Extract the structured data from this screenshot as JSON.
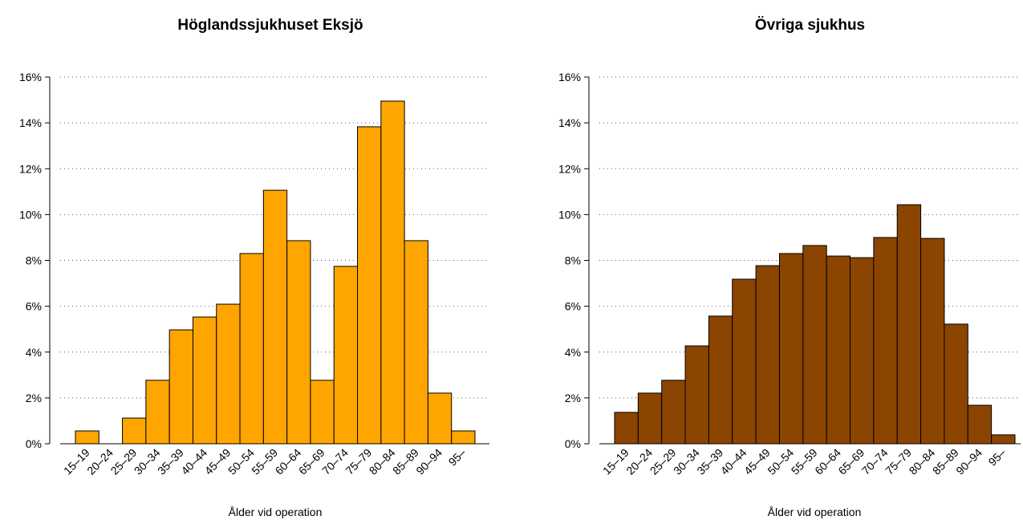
{
  "chart_data": [
    {
      "type": "bar",
      "title": "Höglandssjukhuset Eksjö",
      "x_label": "Ålder vid operation",
      "color": "#ffa500",
      "categories": [
        "15–19",
        "20–24",
        "25–29",
        "30–34",
        "35–39",
        "40–44",
        "45–49",
        "50–54",
        "55–59",
        "60–64",
        "65–69",
        "70–74",
        "75–79",
        "80–84",
        "85–89",
        "90–94",
        "95–"
      ],
      "values": [
        0.56,
        0,
        1.12,
        2.77,
        4.97,
        5.53,
        6.09,
        8.3,
        11.06,
        8.86,
        2.77,
        7.74,
        13.83,
        14.95,
        8.86,
        2.21,
        0.56
      ],
      "ylim": [
        0,
        16
      ],
      "yticks": [
        {
          "value": 0,
          "label": "0%"
        },
        {
          "value": 2,
          "label": "2%"
        },
        {
          "value": 4,
          "label": "4%"
        },
        {
          "value": 6,
          "label": "6%"
        },
        {
          "value": 8,
          "label": "8%"
        },
        {
          "value": 10,
          "label": "10%"
        },
        {
          "value": 12,
          "label": "12%"
        },
        {
          "value": 14,
          "label": "14%"
        },
        {
          "value": 16,
          "label": "16%"
        }
      ],
      "grid": true
    },
    {
      "type": "bar",
      "title": "Övriga sjukhus",
      "x_label": "Ålder vid operation",
      "color": "#8b4500",
      "categories": [
        "15–19",
        "20–24",
        "25–29",
        "30–34",
        "35–39",
        "40–44",
        "45–49",
        "50–54",
        "55–59",
        "60–64",
        "65–69",
        "70–74",
        "75–79",
        "80–84",
        "85–89",
        "90–94",
        "95–"
      ],
      "values": [
        1.37,
        2.21,
        2.77,
        4.27,
        5.57,
        7.18,
        7.77,
        8.3,
        8.65,
        8.19,
        8.12,
        9.0,
        10.43,
        8.96,
        5.22,
        1.68,
        0.39
      ],
      "ylim": [
        0,
        16
      ],
      "yticks": [
        {
          "value": 0,
          "label": "0%"
        },
        {
          "value": 2,
          "label": "2%"
        },
        {
          "value": 4,
          "label": "4%"
        },
        {
          "value": 6,
          "label": "6%"
        },
        {
          "value": 8,
          "label": "8%"
        },
        {
          "value": 10,
          "label": "10%"
        },
        {
          "value": 12,
          "label": "12%"
        },
        {
          "value": 14,
          "label": "14%"
        },
        {
          "value": 16,
          "label": "16%"
        }
      ],
      "grid": true
    }
  ]
}
